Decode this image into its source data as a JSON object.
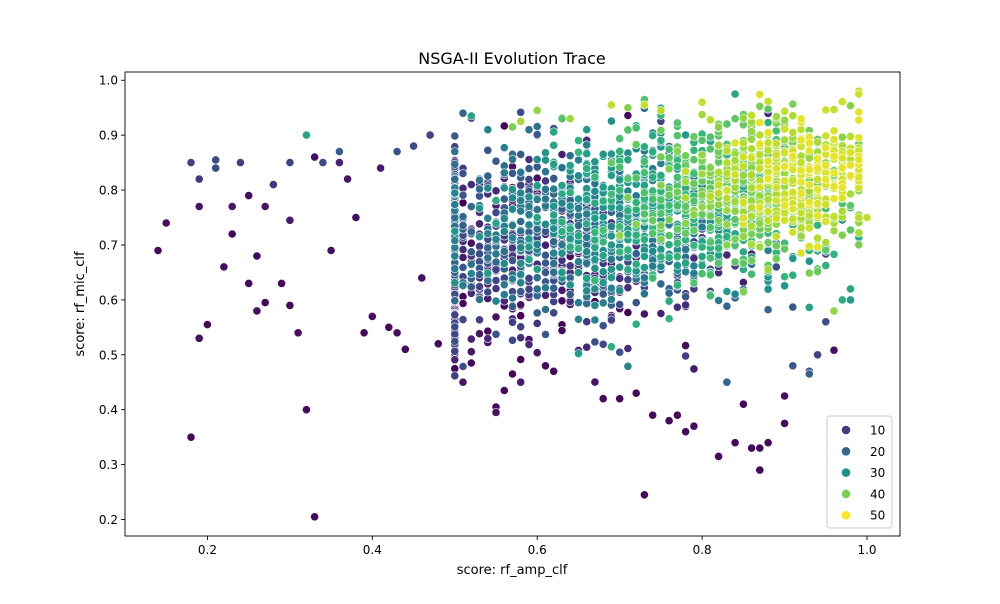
{
  "chart_data": {
    "type": "scatter",
    "title": "NSGA-II Evolution Trace",
    "xlabel": "score: rf_amp_clf",
    "ylabel": "score: rf_mic_clf",
    "xlim": [
      0.1,
      1.04
    ],
    "ylim": [
      0.17,
      1.015
    ],
    "xticks": [
      0.2,
      0.4,
      0.6,
      0.8,
      1.0
    ],
    "xtick_labels": [
      "0.2",
      "0.4",
      "0.6",
      "0.8",
      "1.0"
    ],
    "yticks": [
      0.2,
      0.3,
      0.4,
      0.5,
      0.6,
      0.7,
      0.8,
      0.9,
      1.0
    ],
    "ytick_labels": [
      "0.2",
      "0.3",
      "0.4",
      "0.5",
      "0.6",
      "0.7",
      "0.8",
      "0.9",
      "1.0"
    ],
    "grid": false,
    "legend_position": "bottom-right",
    "hue_range": [
      1,
      55
    ],
    "legend": [
      {
        "label": "10",
        "value": 10,
        "color": "#443983"
      },
      {
        "label": "20",
        "value": 20,
        "color": "#31688e"
      },
      {
        "label": "30",
        "value": 30,
        "color": "#21918c"
      },
      {
        "label": "40",
        "value": 40,
        "color": "#7ad151"
      },
      {
        "label": "50",
        "value": 50,
        "color": "#fde725"
      }
    ],
    "colormap": [
      "#440154",
      "#482878",
      "#3e4989",
      "#31688e",
      "#26828e",
      "#1f9e89",
      "#35b779",
      "#6ece58",
      "#b5de2b",
      "#fde725"
    ],
    "points": [
      [
        0.14,
        0.69,
        2
      ],
      [
        0.15,
        0.74,
        3
      ],
      [
        0.18,
        0.35,
        2
      ],
      [
        0.18,
        0.85,
        12
      ],
      [
        0.19,
        0.82,
        10
      ],
      [
        0.19,
        0.77,
        4
      ],
      [
        0.19,
        0.53,
        3
      ],
      [
        0.2,
        0.555,
        2
      ],
      [
        0.21,
        0.855,
        14
      ],
      [
        0.21,
        0.84,
        13
      ],
      [
        0.22,
        0.66,
        3
      ],
      [
        0.23,
        0.77,
        4
      ],
      [
        0.23,
        0.72,
        2
      ],
      [
        0.24,
        0.85,
        11
      ],
      [
        0.25,
        0.79,
        3
      ],
      [
        0.25,
        0.63,
        2
      ],
      [
        0.26,
        0.58,
        3
      ],
      [
        0.26,
        0.68,
        2
      ],
      [
        0.27,
        0.77,
        4
      ],
      [
        0.27,
        0.595,
        2
      ],
      [
        0.28,
        0.81,
        9
      ],
      [
        0.29,
        0.63,
        2
      ],
      [
        0.3,
        0.85,
        12
      ],
      [
        0.3,
        0.745,
        5
      ],
      [
        0.3,
        0.59,
        2
      ],
      [
        0.31,
        0.54,
        3
      ],
      [
        0.32,
        0.9,
        32
      ],
      [
        0.32,
        0.4,
        2
      ],
      [
        0.33,
        0.86,
        3
      ],
      [
        0.33,
        0.205,
        2
      ],
      [
        0.34,
        0.85,
        14
      ],
      [
        0.35,
        0.69,
        3
      ],
      [
        0.36,
        0.87,
        17
      ],
      [
        0.36,
        0.85,
        6
      ],
      [
        0.37,
        0.82,
        4
      ],
      [
        0.38,
        0.75,
        3
      ],
      [
        0.39,
        0.54,
        2
      ],
      [
        0.4,
        0.57,
        3
      ],
      [
        0.41,
        0.84,
        5
      ],
      [
        0.42,
        0.55,
        2
      ],
      [
        0.43,
        0.87,
        15
      ],
      [
        0.43,
        0.54,
        3
      ],
      [
        0.44,
        0.51,
        2
      ],
      [
        0.45,
        0.88,
        13
      ],
      [
        0.46,
        0.64,
        3
      ],
      [
        0.47,
        0.9,
        12
      ],
      [
        0.48,
        0.52,
        2
      ],
      [
        0.5,
        0.87,
        22
      ],
      [
        0.51,
        0.94,
        18
      ],
      [
        0.52,
        0.935,
        33
      ],
      [
        0.52,
        0.485,
        2
      ],
      [
        0.54,
        0.91,
        25
      ],
      [
        0.55,
        0.405,
        2
      ],
      [
        0.55,
        0.395,
        3
      ],
      [
        0.56,
        0.435,
        2
      ],
      [
        0.57,
        0.915,
        44
      ],
      [
        0.57,
        0.465,
        2
      ],
      [
        0.58,
        0.925,
        48
      ],
      [
        0.59,
        0.91,
        21
      ],
      [
        0.6,
        0.945,
        46
      ],
      [
        0.61,
        0.48,
        2
      ],
      [
        0.62,
        0.47,
        2
      ],
      [
        0.63,
        0.93,
        40
      ],
      [
        0.64,
        0.93,
        47
      ],
      [
        0.65,
        0.89,
        36
      ],
      [
        0.66,
        0.91,
        30
      ],
      [
        0.67,
        0.62,
        28
      ],
      [
        0.68,
        0.42,
        2
      ],
      [
        0.69,
        0.955,
        50
      ],
      [
        0.7,
        0.42,
        2
      ],
      [
        0.71,
        0.95,
        45
      ],
      [
        0.72,
        0.43,
        2
      ],
      [
        0.73,
        0.245,
        2
      ],
      [
        0.73,
        0.955,
        50
      ],
      [
        0.74,
        0.39,
        2
      ],
      [
        0.75,
        0.945,
        49
      ],
      [
        0.76,
        0.38,
        2
      ],
      [
        0.77,
        0.39,
        2
      ],
      [
        0.78,
        0.36,
        2
      ],
      [
        0.79,
        0.37,
        2
      ],
      [
        0.8,
        0.96,
        50
      ],
      [
        0.81,
        0.61,
        33
      ],
      [
        0.82,
        0.315,
        2
      ],
      [
        0.83,
        0.45,
        18
      ],
      [
        0.84,
        0.975,
        33
      ],
      [
        0.84,
        0.34,
        2
      ],
      [
        0.85,
        0.41,
        2
      ],
      [
        0.86,
        0.33,
        2
      ],
      [
        0.87,
        0.29,
        2
      ],
      [
        0.87,
        0.33,
        2
      ],
      [
        0.88,
        0.34,
        2
      ],
      [
        0.9,
        0.425,
        3
      ],
      [
        0.9,
        0.375,
        2
      ],
      [
        0.91,
        0.48,
        16
      ],
      [
        0.93,
        0.47,
        14
      ],
      [
        0.93,
        0.465,
        18
      ],
      [
        0.94,
        0.5,
        12
      ],
      [
        0.95,
        0.56,
        14
      ],
      [
        0.96,
        0.58,
        46
      ],
      [
        0.97,
        0.6,
        35
      ],
      [
        0.98,
        0.6,
        30
      ],
      [
        0.98,
        0.62,
        33
      ],
      [
        0.99,
        0.98,
        50
      ],
      [
        0.99,
        0.975,
        51
      ],
      [
        1.0,
        0.75,
        50
      ]
    ],
    "bulk": {
      "count": 2700,
      "x_range": [
        0.5,
        0.99
      ],
      "y_range": [
        0.45,
        0.97
      ],
      "hue_range": [
        1,
        53
      ]
    }
  }
}
